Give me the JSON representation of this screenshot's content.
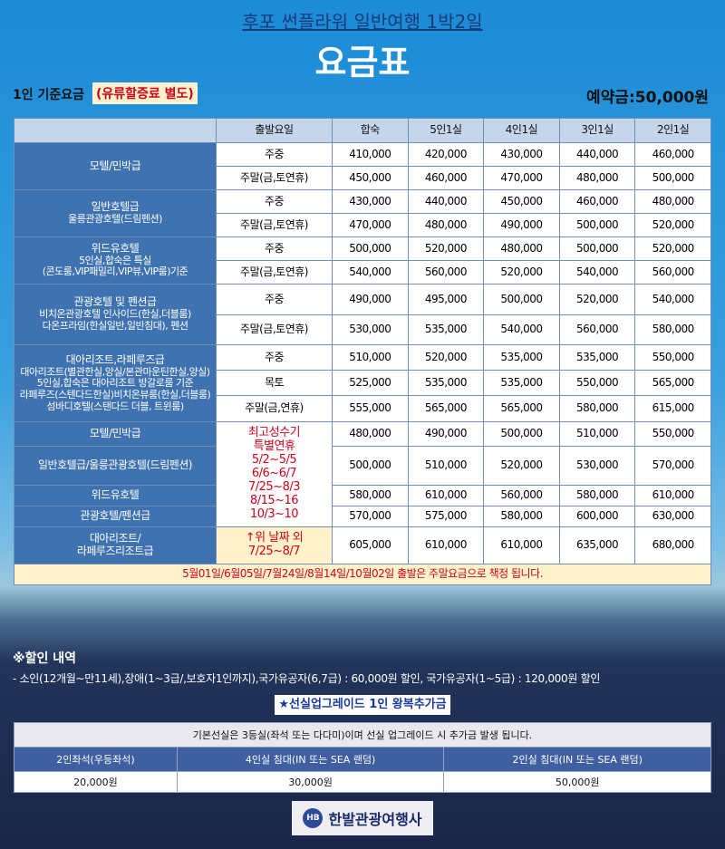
{
  "header": {
    "subtitle": "후포 썬플라워 일반여행 1박2일",
    "title": "요금표",
    "basis": "1인 기준요금",
    "note": "(유류할증료 별도)",
    "deposit": "예약금:50,000원"
  },
  "table": {
    "columns": [
      "출발요일",
      "합숙",
      "5인1실",
      "4인1실",
      "3인1실",
      "2인1실"
    ],
    "groups": [
      {
        "label": [
          "모텔/민박급"
        ],
        "rows": [
          {
            "day": "주중",
            "prices": [
              "410,000",
              "420,000",
              "430,000",
              "440,000",
              "460,000"
            ]
          },
          {
            "day": "주말(금,토연휴)",
            "prices": [
              "450,000",
              "460,000",
              "470,000",
              "480,000",
              "500,000"
            ]
          }
        ]
      },
      {
        "label": [
          "일반호텔급",
          "울릉관광호텔(드림펜션)"
        ],
        "rows": [
          {
            "day": "주중",
            "prices": [
              "430,000",
              "440,000",
              "450,000",
              "460,000",
              "480,000"
            ]
          },
          {
            "day": "주말(금,토연휴)",
            "prices": [
              "470,000",
              "480,000",
              "490,000",
              "500,000",
              "520,000"
            ]
          }
        ]
      },
      {
        "label": [
          "위드유호텔",
          "5인실,합숙은 특실",
          "(콘도룸,VIP패밀리,VIP뷰,VIP룸)기준"
        ],
        "rows": [
          {
            "day": "주중",
            "prices": [
              "500,000",
              "520,000",
              "480,000",
              "500,000",
              "520,000"
            ]
          },
          {
            "day": "주말(금,토연휴)",
            "prices": [
              "540,000",
              "560,000",
              "520,000",
              "540,000",
              "560,000"
            ]
          }
        ]
      },
      {
        "label": [
          "관광호텔 및 펜션급",
          "비치온관광호텔 인사이드(한실,더블룸)",
          "다온프라임(한실일반,일반침대), 펜션"
        ],
        "rows": [
          {
            "day": "주중",
            "prices": [
              "490,000",
              "495,000",
              "500,000",
              "520,000",
              "540,000"
            ]
          },
          {
            "day": "주말(금,토연휴)",
            "prices": [
              "530,000",
              "535,000",
              "540,000",
              "560,000",
              "580,000"
            ]
          }
        ]
      },
      {
        "label": [
          "대아리조트,라페루즈급",
          "대아리조트(별관한실,양실/본관마운틴한실,양실)",
          "5인실,합숙은 대아리조트 방갈로룸 기준",
          "라페루즈(스텐다드한실)비치온뷰룸(한실,더블룸)",
          "섬바디호텔(스탠다드 더블, 트윈룸)"
        ],
        "rows": [
          {
            "day": "주중",
            "prices": [
              "510,000",
              "520,000",
              "535,000",
              "535,000",
              "550,000"
            ]
          },
          {
            "day": "목토",
            "prices": [
              "525,000",
              "535,000",
              "535,000",
              "550,000",
              "565,000"
            ]
          },
          {
            "day": "주말(금,연휴)",
            "prices": [
              "555,000",
              "565,000",
              "565,000",
              "580,000",
              "615,000"
            ]
          }
        ]
      }
    ],
    "peak": {
      "day": [
        "최고성수기",
        "특별연휴",
        "5/2~5/5",
        "6/6~6/7",
        "7/25~8/3",
        "8/15~16",
        "10/3~10"
      ],
      "day_extra": [
        "↑위 날짜 외",
        "7/25~8/7"
      ],
      "groups": [
        {
          "label": [
            "모텔/민박급"
          ],
          "prices": [
            "480,000",
            "490,000",
            "500,000",
            "510,000",
            "550,000"
          ]
        },
        {
          "label": [
            "일반호텔급/울릉관광호텔(드림펜션)"
          ],
          "prices": [
            "500,000",
            "510,000",
            "520,000",
            "530,000",
            "570,000"
          ]
        },
        {
          "label": [
            "위드유호텔"
          ],
          "prices": [
            "580,000",
            "610,000",
            "560,000",
            "580,000",
            "610,000"
          ]
        },
        {
          "label": [
            "관광호텔/펜션급"
          ],
          "prices": [
            "570,000",
            "575,000",
            "580,000",
            "600,000",
            "630,000"
          ]
        },
        {
          "label": [
            "대아리조트/",
            "라페루즈리조트급"
          ],
          "prices": [
            "605,000",
            "610,000",
            "610,000",
            "635,000",
            "680,000"
          ]
        }
      ]
    },
    "footnote": "5월01일/6월05일/7월24일/8월14일/10월02일 출발은 주말요금으로 책정 됩니다."
  },
  "discount": {
    "title": "※할인 내역",
    "text": "- 소인(12개월~만11세),장애(1~3급/,보호자1인까지),국가유공자(6,7급) : 60,000원 할인, 국가유공자(1~5급) : 120,000원 할인"
  },
  "upgrade": {
    "title": "★선실업그레이드 1인 왕복추가금★",
    "note": "기본선실은 3등실(좌석 또는 다다미)이며 선실 업그레이드 시 추가금 발생 됩니다.",
    "columns": [
      "2인좌석(우등좌석)",
      "4인실 침대(IN 또는 SEA 랜덤)",
      "2인실 침대(IN 또는 SEA 랜덤)"
    ],
    "prices": [
      "20,000원",
      "30,000원",
      "50,000원"
    ]
  },
  "logo": {
    "mark": "HB",
    "name": "한발관광여행사"
  }
}
